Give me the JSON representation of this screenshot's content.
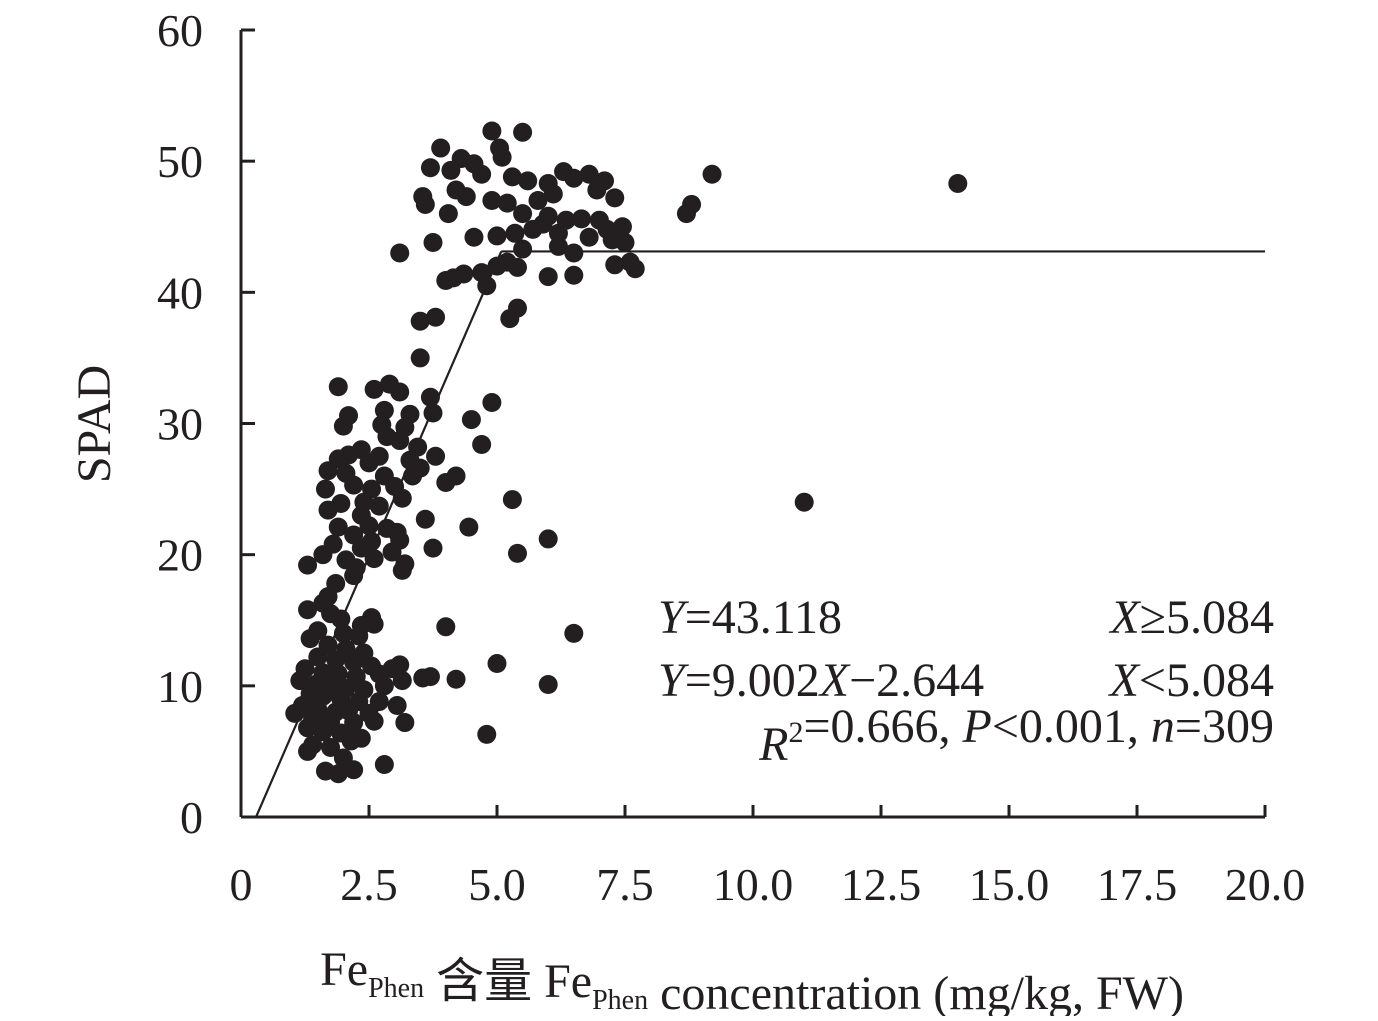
{
  "chart_data": {
    "type": "scatter",
    "ylabel": "SPAD",
    "xlabel": {
      "parts": [
        {
          "text": "Fe"
        },
        {
          "text": "Phen",
          "sub": true
        },
        {
          "text": " 含量 Fe"
        },
        {
          "text": "Phen",
          "sub": true
        },
        {
          "text": " concentration (mg/kg, FW)"
        }
      ]
    },
    "xlim": [
      0,
      20
    ],
    "ylim": [
      0,
      60
    ],
    "xticks": [
      {
        "value": 0,
        "label": "0"
      },
      {
        "value": 2.5,
        "label": "2.5"
      },
      {
        "value": 5,
        "label": "5.0"
      },
      {
        "value": 7.5,
        "label": "7.5"
      },
      {
        "value": 10,
        "label": "10.0"
      },
      {
        "value": 12.5,
        "label": "12.5"
      },
      {
        "value": 15,
        "label": "15.0"
      },
      {
        "value": 17.5,
        "label": "17.5"
      },
      {
        "value": 20,
        "label": "20.0"
      }
    ],
    "yticks": [
      {
        "value": 0,
        "label": "0"
      },
      {
        "value": 10,
        "label": "10"
      },
      {
        "value": 20,
        "label": "20"
      },
      {
        "value": 30,
        "label": "30"
      },
      {
        "value": 40,
        "label": "40"
      },
      {
        "value": 50,
        "label": "50"
      },
      {
        "value": 60,
        "label": "60"
      }
    ],
    "grid": false,
    "marker_color": "#231f20",
    "fit_line": {
      "segments": [
        {
          "x": [
            0.294,
            5.084
          ],
          "y": [
            0,
            43.118
          ]
        },
        {
          "x": [
            5.084,
            20
          ],
          "y": [
            43.118,
            43.118
          ]
        }
      ],
      "color": "#231f20"
    },
    "annotations": [
      {
        "left": [
          {
            "t": "Y",
            "i": true
          },
          {
            "t": "=43.118"
          }
        ],
        "right": [
          {
            "t": "X",
            "i": true
          },
          {
            "t": "≥5.084"
          }
        ]
      },
      {
        "left": [
          {
            "t": "Y",
            "i": true
          },
          {
            "t": "=9.002"
          },
          {
            "t": "X",
            "i": true
          },
          {
            "t": "−2.644"
          }
        ],
        "right": [
          {
            "t": "X",
            "i": true
          },
          {
            "t": "<5.084"
          }
        ]
      },
      {
        "right": [
          {
            "t": "R",
            "i": true
          },
          {
            "t": "2",
            "sup": true
          },
          {
            "t": "=0.666, "
          },
          {
            "t": "P",
            "i": true
          },
          {
            "t": "<0.001, "
          },
          {
            "t": "n",
            "i": true
          },
          {
            "t": "=309"
          }
        ]
      }
    ],
    "points": [
      [
        14.0,
        48.3
      ],
      [
        9.2,
        49.0
      ],
      [
        11.0,
        24.0
      ],
      [
        8.8,
        46.7
      ],
      [
        8.7,
        46.0
      ],
      [
        4.9,
        52.3
      ],
      [
        5.5,
        52.2
      ],
      [
        3.9,
        51.0
      ],
      [
        5.05,
        51.0
      ],
      [
        4.3,
        50.2
      ],
      [
        5.1,
        50.3
      ],
      [
        4.55,
        49.8
      ],
      [
        3.7,
        49.5
      ],
      [
        4.1,
        49.3
      ],
      [
        4.7,
        49.0
      ],
      [
        5.3,
        48.8
      ],
      [
        5.6,
        48.5
      ],
      [
        6.0,
        48.3
      ],
      [
        6.3,
        49.2
      ],
      [
        6.5,
        48.7
      ],
      [
        6.8,
        49.0
      ],
      [
        7.1,
        48.5
      ],
      [
        6.95,
        47.8
      ],
      [
        7.3,
        47.2
      ],
      [
        6.1,
        47.5
      ],
      [
        5.8,
        47.0
      ],
      [
        5.2,
        46.8
      ],
      [
        4.9,
        47.0
      ],
      [
        4.4,
        47.3
      ],
      [
        4.2,
        47.8
      ],
      [
        3.55,
        47.3
      ],
      [
        3.6,
        46.7
      ],
      [
        4.05,
        46.0
      ],
      [
        5.5,
        46.0
      ],
      [
        6.0,
        45.8
      ],
      [
        6.35,
        45.5
      ],
      [
        6.65,
        45.6
      ],
      [
        7.0,
        45.5
      ],
      [
        7.15,
        44.8
      ],
      [
        7.45,
        45.0
      ],
      [
        5.9,
        45.2
      ],
      [
        5.7,
        44.8
      ],
      [
        5.35,
        44.5
      ],
      [
        5.0,
        44.3
      ],
      [
        4.55,
        44.2
      ],
      [
        6.2,
        44.5
      ],
      [
        6.8,
        44.2
      ],
      [
        7.25,
        44.0
      ],
      [
        7.5,
        43.8
      ],
      [
        6.5,
        43.0
      ],
      [
        6.2,
        43.5
      ],
      [
        5.5,
        43.3
      ],
      [
        3.75,
        43.8
      ],
      [
        3.1,
        43.0
      ],
      [
        7.6,
        42.3
      ],
      [
        7.3,
        42.1
      ],
      [
        7.7,
        41.8
      ],
      [
        6.5,
        41.3
      ],
      [
        6.0,
        41.2
      ],
      [
        5.4,
        41.9
      ],
      [
        5.0,
        42.0
      ],
      [
        5.2,
        42.3
      ],
      [
        4.7,
        41.5
      ],
      [
        4.35,
        41.4
      ],
      [
        4.15,
        41.1
      ],
      [
        4.0,
        40.9
      ],
      [
        4.8,
        40.5
      ],
      [
        5.4,
        38.8
      ],
      [
        5.25,
        38.0
      ],
      [
        3.5,
        37.8
      ],
      [
        3.8,
        38.1
      ],
      [
        2.9,
        33.0
      ],
      [
        1.9,
        32.8
      ],
      [
        2.6,
        32.6
      ],
      [
        3.1,
        32.4
      ],
      [
        3.7,
        32.0
      ],
      [
        4.9,
        31.6
      ],
      [
        2.8,
        31.0
      ],
      [
        3.3,
        30.7
      ],
      [
        3.75,
        30.8
      ],
      [
        2.1,
        30.6
      ],
      [
        4.5,
        30.3
      ],
      [
        2.0,
        29.8
      ],
      [
        2.75,
        29.9
      ],
      [
        3.2,
        29.7
      ],
      [
        2.85,
        29.0
      ],
      [
        3.1,
        28.7
      ],
      [
        3.45,
        28.2
      ],
      [
        4.7,
        28.4
      ],
      [
        2.35,
        28.0
      ],
      [
        2.1,
        27.6
      ],
      [
        2.7,
        27.5
      ],
      [
        3.3,
        27.2
      ],
      [
        3.8,
        27.5
      ],
      [
        1.9,
        27.3
      ],
      [
        2.5,
        27.0
      ],
      [
        3.5,
        26.6
      ],
      [
        1.7,
        26.4
      ],
      [
        2.05,
        26.2
      ],
      [
        2.8,
        26.0
      ],
      [
        3.35,
        26.0
      ],
      [
        4.2,
        26.0
      ],
      [
        4.0,
        25.5
      ],
      [
        1.65,
        25.0
      ],
      [
        2.2,
        25.3
      ],
      [
        2.55,
        25.0
      ],
      [
        3.0,
        25.2
      ],
      [
        3.15,
        24.3
      ],
      [
        2.4,
        24.0
      ],
      [
        1.95,
        23.9
      ],
      [
        2.7,
        23.7
      ],
      [
        1.7,
        23.4
      ],
      [
        2.35,
        23.0
      ],
      [
        3.6,
        22.7
      ],
      [
        1.9,
        22.1
      ],
      [
        2.5,
        22.2
      ],
      [
        2.85,
        22.0
      ],
      [
        3.05,
        21.7
      ],
      [
        4.45,
        22.1
      ],
      [
        2.2,
        21.5
      ],
      [
        2.55,
        21.0
      ],
      [
        3.1,
        21.1
      ],
      [
        1.8,
        20.8
      ],
      [
        2.35,
        20.5
      ],
      [
        2.95,
        20.2
      ],
      [
        3.75,
        20.5
      ],
      [
        1.6,
        20.0
      ],
      [
        2.05,
        19.6
      ],
      [
        2.6,
        19.7
      ],
      [
        3.2,
        19.3
      ],
      [
        1.3,
        19.2
      ],
      [
        2.25,
        19.0
      ],
      [
        3.15,
        18.8
      ],
      [
        2.2,
        18.4
      ],
      [
        1.85,
        17.8
      ],
      [
        1.7,
        16.8
      ],
      [
        1.6,
        16.3
      ],
      [
        1.3,
        15.8
      ],
      [
        1.75,
        15.5
      ],
      [
        1.95,
        15.1
      ],
      [
        2.55,
        15.2
      ],
      [
        2.35,
        14.6
      ],
      [
        2.6,
        14.7
      ],
      [
        1.5,
        14.2
      ],
      [
        2.0,
        14.0
      ],
      [
        2.3,
        13.8
      ],
      [
        1.35,
        13.6
      ],
      [
        1.7,
        13.1
      ],
      [
        2.05,
        12.8
      ],
      [
        2.4,
        12.5
      ],
      [
        1.5,
        12.2
      ],
      [
        1.85,
        12.0
      ],
      [
        2.2,
        11.8
      ],
      [
        2.55,
        11.5
      ],
      [
        1.25,
        11.3
      ],
      [
        1.6,
        11.0
      ],
      [
        1.9,
        10.9
      ],
      [
        2.25,
        10.7
      ],
      [
        2.7,
        10.9
      ],
      [
        2.95,
        11.3
      ],
      [
        3.1,
        11.6
      ],
      [
        1.15,
        10.4
      ],
      [
        1.45,
        10.1
      ],
      [
        1.8,
        10.0
      ],
      [
        2.05,
        9.8
      ],
      [
        2.4,
        9.7
      ],
      [
        2.8,
        10.0
      ],
      [
        3.15,
        10.4
      ],
      [
        3.55,
        10.6
      ],
      [
        3.7,
        10.7
      ],
      [
        1.35,
        9.4
      ],
      [
        1.6,
        9.2
      ],
      [
        1.95,
        9.0
      ],
      [
        2.3,
        8.8
      ],
      [
        2.7,
        8.8
      ],
      [
        3.05,
        8.5
      ],
      [
        1.2,
        8.5
      ],
      [
        1.5,
        8.2
      ],
      [
        1.85,
        8.0
      ],
      [
        2.1,
        8.1
      ],
      [
        2.5,
        7.9
      ],
      [
        1.05,
        7.9
      ],
      [
        1.4,
        7.5
      ],
      [
        1.75,
        7.3
      ],
      [
        2.2,
        7.2
      ],
      [
        2.6,
        7.3
      ],
      [
        3.2,
        7.2
      ],
      [
        1.3,
        6.8
      ],
      [
        1.6,
        6.5
      ],
      [
        1.95,
        6.4
      ],
      [
        2.35,
        6.0
      ],
      [
        2.15,
        5.8
      ],
      [
        1.4,
        5.5
      ],
      [
        1.75,
        5.3
      ],
      [
        1.3,
        5.0
      ],
      [
        2.0,
        4.5
      ],
      [
        2.8,
        4.0
      ],
      [
        1.65,
        3.5
      ],
      [
        2.2,
        3.6
      ],
      [
        1.9,
        3.3
      ],
      [
        4.0,
        14.5
      ],
      [
        6.5,
        14.0
      ],
      [
        4.2,
        10.5
      ],
      [
        5.0,
        11.7
      ],
      [
        6.0,
        10.1
      ],
      [
        4.8,
        6.3
      ],
      [
        5.3,
        24.2
      ],
      [
        5.4,
        20.1
      ],
      [
        6.0,
        21.2
      ],
      [
        3.5,
        35.0
      ]
    ]
  }
}
